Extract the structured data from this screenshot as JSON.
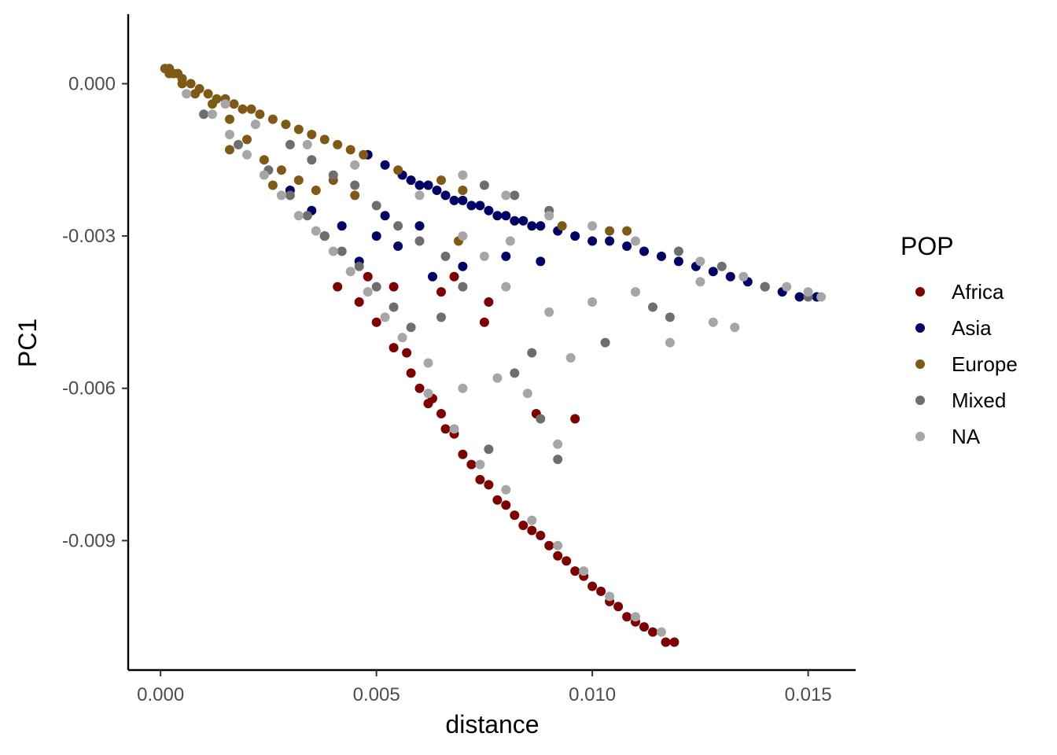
{
  "chart_data": {
    "type": "scatter",
    "xlabel": "distance",
    "ylabel": "PC1",
    "xlim": [
      -0.00075,
      0.0161
    ],
    "ylim": [
      -0.01155,
      0.00137
    ],
    "x_ticks": [
      0.0,
      0.005,
      0.01,
      0.015
    ],
    "x_tick_labels": [
      "0.000",
      "0.005",
      "0.010",
      "0.015"
    ],
    "y_ticks": [
      0.0,
      -0.003,
      -0.006,
      -0.009
    ],
    "y_tick_labels": [
      "0.000",
      "-0.003",
      "-0.006",
      "-0.009"
    ],
    "grid": false,
    "legend": {
      "title": "POP",
      "position": "right"
    },
    "series": [
      {
        "name": "Africa",
        "color": "#7f0000",
        "points": [
          [
            0.0041,
            -0.004
          ],
          [
            0.0046,
            -0.0043
          ],
          [
            0.005,
            -0.0047
          ],
          [
            0.0054,
            -0.0052
          ],
          [
            0.0058,
            -0.0057
          ],
          [
            0.0062,
            -0.0063
          ],
          [
            0.0066,
            -0.0068
          ],
          [
            0.007,
            -0.0073
          ],
          [
            0.0074,
            -0.0078
          ],
          [
            0.0078,
            -0.0082
          ],
          [
            0.0082,
            -0.0085
          ],
          [
            0.0086,
            -0.0088
          ],
          [
            0.009,
            -0.0091
          ],
          [
            0.0094,
            -0.0094
          ],
          [
            0.0098,
            -0.0097
          ],
          [
            0.0102,
            -0.01
          ],
          [
            0.0106,
            -0.0103
          ],
          [
            0.011,
            -0.0106
          ],
          [
            0.0114,
            -0.0108
          ],
          [
            0.0117,
            -0.011
          ],
          [
            0.0119,
            -0.011
          ],
          [
            0.0063,
            -0.0062
          ],
          [
            0.0068,
            -0.0069
          ],
          [
            0.0072,
            -0.0075
          ],
          [
            0.0076,
            -0.0079
          ],
          [
            0.008,
            -0.0083
          ],
          [
            0.0084,
            -0.0087
          ],
          [
            0.0088,
            -0.0089
          ],
          [
            0.0092,
            -0.0093
          ],
          [
            0.0096,
            -0.0096
          ],
          [
            0.01,
            -0.0099
          ],
          [
            0.0104,
            -0.0102
          ],
          [
            0.0108,
            -0.0105
          ],
          [
            0.0112,
            -0.0107
          ],
          [
            0.006,
            -0.006
          ],
          [
            0.0065,
            -0.0065
          ],
          [
            0.0087,
            -0.0065
          ],
          [
            0.0096,
            -0.0066
          ],
          [
            0.0075,
            -0.0047
          ],
          [
            0.0076,
            -0.0043
          ],
          [
            0.0065,
            -0.0041
          ],
          [
            0.0054,
            -0.004
          ],
          [
            0.0048,
            -0.0038
          ],
          [
            0.0068,
            -0.0038
          ],
          [
            0.0057,
            -0.0053
          ]
        ]
      },
      {
        "name": "Asia",
        "color": "#000066",
        "points": [
          [
            0.0048,
            -0.0014
          ],
          [
            0.0052,
            -0.0016
          ],
          [
            0.0056,
            -0.0018
          ],
          [
            0.006,
            -0.002
          ],
          [
            0.0064,
            -0.0021
          ],
          [
            0.0068,
            -0.0023
          ],
          [
            0.0072,
            -0.0024
          ],
          [
            0.0076,
            -0.0025
          ],
          [
            0.008,
            -0.0026
          ],
          [
            0.0084,
            -0.0027
          ],
          [
            0.0088,
            -0.0028
          ],
          [
            0.0092,
            -0.0029
          ],
          [
            0.0096,
            -0.003
          ],
          [
            0.01,
            -0.0031
          ],
          [
            0.0104,
            -0.0031
          ],
          [
            0.0108,
            -0.0032
          ],
          [
            0.0112,
            -0.0033
          ],
          [
            0.0116,
            -0.0034
          ],
          [
            0.012,
            -0.0035
          ],
          [
            0.0124,
            -0.0036
          ],
          [
            0.0128,
            -0.0037
          ],
          [
            0.0132,
            -0.0038
          ],
          [
            0.0136,
            -0.0039
          ],
          [
            0.014,
            -0.004
          ],
          [
            0.0144,
            -0.0041
          ],
          [
            0.0148,
            -0.0042
          ],
          [
            0.0152,
            -0.0042
          ],
          [
            0.0058,
            -0.0019
          ],
          [
            0.0062,
            -0.002
          ],
          [
            0.0066,
            -0.0022
          ],
          [
            0.007,
            -0.0023
          ],
          [
            0.0074,
            -0.0024
          ],
          [
            0.0078,
            -0.0026
          ],
          [
            0.0082,
            -0.0027
          ],
          [
            0.0086,
            -0.0028
          ],
          [
            0.003,
            -0.0021
          ],
          [
            0.0035,
            -0.0025
          ],
          [
            0.0042,
            -0.0028
          ],
          [
            0.005,
            -0.003
          ],
          [
            0.0046,
            -0.0035
          ],
          [
            0.0055,
            -0.0032
          ],
          [
            0.006,
            -0.0028
          ],
          [
            0.0063,
            -0.0038
          ],
          [
            0.007,
            -0.0036
          ],
          [
            0.008,
            -0.0034
          ],
          [
            0.0088,
            -0.0035
          ],
          [
            0.0038,
            -0.003
          ],
          [
            0.0052,
            -0.0026
          ]
        ]
      },
      {
        "name": "Europe",
        "color": "#7f5a16",
        "points": [
          [
            0.0001,
            0.0003
          ],
          [
            0.0002,
            0.0003
          ],
          [
            0.0003,
            0.0002
          ],
          [
            0.0004,
            0.0002
          ],
          [
            0.0005,
            0.0001
          ],
          [
            0.0007,
            0.0
          ],
          [
            0.0009,
            -0.0001
          ],
          [
            0.0011,
            -0.0002
          ],
          [
            0.0013,
            -0.0003
          ],
          [
            0.0015,
            -0.0003
          ],
          [
            0.0017,
            -0.0004
          ],
          [
            0.0019,
            -0.0005
          ],
          [
            0.0021,
            -0.0005
          ],
          [
            0.0023,
            -0.0006
          ],
          [
            0.0026,
            -0.0007
          ],
          [
            0.0029,
            -0.0008
          ],
          [
            0.0032,
            -0.0009
          ],
          [
            0.0035,
            -0.001
          ],
          [
            0.0038,
            -0.0011
          ],
          [
            0.0041,
            -0.0012
          ],
          [
            0.0044,
            -0.0013
          ],
          [
            0.0047,
            -0.0014
          ],
          [
            0.0002,
            0.0002
          ],
          [
            0.0005,
            0.0
          ],
          [
            0.0008,
            -0.0002
          ],
          [
            0.0012,
            -0.0004
          ],
          [
            0.0016,
            -0.0007
          ],
          [
            0.002,
            -0.0011
          ],
          [
            0.0024,
            -0.0015
          ],
          [
            0.0028,
            -0.0017
          ],
          [
            0.0032,
            -0.0019
          ],
          [
            0.0036,
            -0.0021
          ],
          [
            0.004,
            -0.0019
          ],
          [
            0.0045,
            -0.0022
          ],
          [
            0.0055,
            -0.0017
          ],
          [
            0.0065,
            -0.0019
          ],
          [
            0.007,
            -0.0021
          ],
          [
            0.0093,
            -0.0028
          ],
          [
            0.0104,
            -0.0029
          ],
          [
            0.0108,
            -0.0029
          ],
          [
            0.0069,
            -0.0031
          ],
          [
            0.0016,
            -0.0013
          ],
          [
            0.0026,
            -0.002
          ]
        ]
      },
      {
        "name": "Mixed",
        "color": "#6e6e6e",
        "points": [
          [
            0.001,
            -0.0006
          ],
          [
            0.0018,
            -0.0012
          ],
          [
            0.0025,
            -0.0017
          ],
          [
            0.003,
            -0.0022
          ],
          [
            0.0034,
            -0.0026
          ],
          [
            0.0038,
            -0.003
          ],
          [
            0.0042,
            -0.0033
          ],
          [
            0.0046,
            -0.0036
          ],
          [
            0.005,
            -0.004
          ],
          [
            0.0054,
            -0.0044
          ],
          [
            0.0058,
            -0.0048
          ],
          [
            0.0035,
            -0.0015
          ],
          [
            0.004,
            -0.0018
          ],
          [
            0.0045,
            -0.002
          ],
          [
            0.003,
            -0.0012
          ],
          [
            0.005,
            -0.0024
          ],
          [
            0.0055,
            -0.0028
          ],
          [
            0.006,
            -0.0031
          ],
          [
            0.0066,
            -0.0034
          ],
          [
            0.0075,
            -0.002
          ],
          [
            0.0082,
            -0.0022
          ],
          [
            0.009,
            -0.0025
          ],
          [
            0.012,
            -0.0033
          ],
          [
            0.013,
            -0.0036
          ],
          [
            0.014,
            -0.004
          ],
          [
            0.015,
            -0.0042
          ],
          [
            0.0086,
            -0.0053
          ],
          [
            0.0082,
            -0.0057
          ],
          [
            0.0088,
            -0.0066
          ],
          [
            0.0092,
            -0.0074
          ],
          [
            0.0076,
            -0.0072
          ],
          [
            0.0103,
            -0.0051
          ],
          [
            0.0114,
            -0.0044
          ],
          [
            0.0118,
            -0.0046
          ],
          [
            0.007,
            -0.004
          ],
          [
            0.0065,
            -0.0046
          ]
        ]
      },
      {
        "name": "NA",
        "color": "#a6a6a6",
        "points": [
          [
            0.0006,
            -0.0002
          ],
          [
            0.0012,
            -0.0006
          ],
          [
            0.0016,
            -0.001
          ],
          [
            0.002,
            -0.0014
          ],
          [
            0.0024,
            -0.0018
          ],
          [
            0.0028,
            -0.0022
          ],
          [
            0.0032,
            -0.0026
          ],
          [
            0.0036,
            -0.0029
          ],
          [
            0.004,
            -0.0033
          ],
          [
            0.0044,
            -0.0037
          ],
          [
            0.0048,
            -0.0041
          ],
          [
            0.0052,
            -0.0046
          ],
          [
            0.0056,
            -0.005
          ],
          [
            0.0062,
            -0.0061
          ],
          [
            0.0068,
            -0.0068
          ],
          [
            0.0074,
            -0.0075
          ],
          [
            0.008,
            -0.008
          ],
          [
            0.0086,
            -0.0086
          ],
          [
            0.0092,
            -0.0091
          ],
          [
            0.0098,
            -0.0096
          ],
          [
            0.0104,
            -0.0101
          ],
          [
            0.011,
            -0.0105
          ],
          [
            0.0116,
            -0.0108
          ],
          [
            0.007,
            -0.0018
          ],
          [
            0.008,
            -0.0022
          ],
          [
            0.009,
            -0.0026
          ],
          [
            0.01,
            -0.0028
          ],
          [
            0.011,
            -0.0031
          ],
          [
            0.0125,
            -0.0035
          ],
          [
            0.0135,
            -0.0038
          ],
          [
            0.0145,
            -0.004
          ],
          [
            0.015,
            -0.0041
          ],
          [
            0.0153,
            -0.0042
          ],
          [
            0.008,
            -0.004
          ],
          [
            0.009,
            -0.0045
          ],
          [
            0.01,
            -0.0043
          ],
          [
            0.011,
            -0.0041
          ],
          [
            0.0125,
            -0.0039
          ],
          [
            0.0128,
            -0.0047
          ],
          [
            0.0133,
            -0.0048
          ],
          [
            0.0118,
            -0.0051
          ],
          [
            0.0095,
            -0.0054
          ],
          [
            0.0085,
            -0.0061
          ],
          [
            0.0078,
            -0.0058
          ],
          [
            0.007,
            -0.006
          ],
          [
            0.0062,
            -0.0055
          ],
          [
            0.0092,
            -0.0071
          ],
          [
            0.0015,
            -0.0004
          ],
          [
            0.0022,
            -0.0008
          ],
          [
            0.0034,
            -0.0012
          ],
          [
            0.0045,
            -0.0016
          ],
          [
            0.006,
            -0.0022
          ],
          [
            0.007,
            -0.003
          ],
          [
            0.0075,
            -0.0034
          ],
          [
            0.0081,
            -0.0031
          ]
        ]
      }
    ]
  }
}
